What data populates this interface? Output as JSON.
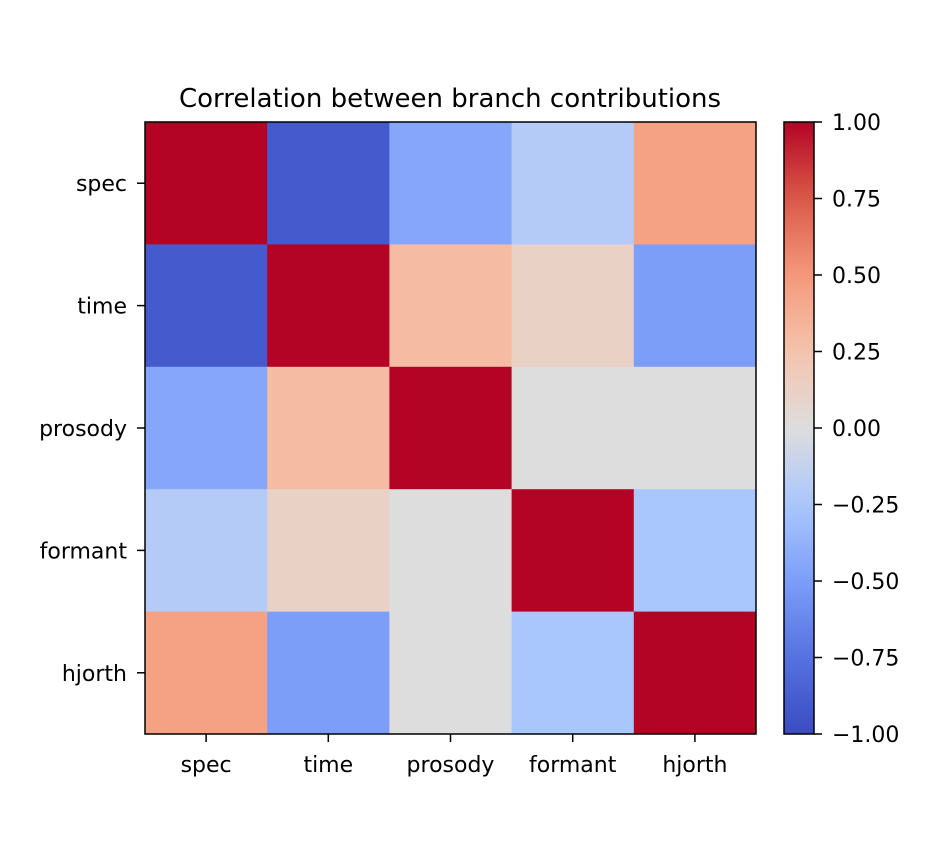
{
  "chart_data": {
    "type": "heatmap",
    "title": "Correlation between branch contributions",
    "xlabel": "",
    "ylabel": "",
    "x_categories": [
      "spec",
      "time",
      "prosody",
      "formant",
      "hjorth"
    ],
    "y_categories": [
      "spec",
      "time",
      "prosody",
      "formant",
      "hjorth"
    ],
    "values": [
      [
        1.0,
        -0.9,
        -0.45,
        -0.2,
        0.45
      ],
      [
        -0.9,
        1.0,
        0.3,
        0.12,
        -0.5
      ],
      [
        -0.45,
        0.3,
        1.0,
        0.0,
        0.0
      ],
      [
        -0.2,
        0.12,
        0.0,
        1.0,
        -0.25
      ],
      [
        0.45,
        -0.5,
        0.0,
        -0.25,
        1.0
      ]
    ],
    "colormap": "coolwarm",
    "vmin": -1.0,
    "vmax": 1.0,
    "colorbar_ticks": [
      "1.00",
      "0.75",
      "0.50",
      "0.25",
      "0.00",
      "−0.25",
      "−0.50",
      "−0.75",
      "−1.00"
    ],
    "colorbar_tick_values": [
      1.0,
      0.75,
      0.5,
      0.25,
      0.0,
      -0.25,
      -0.5,
      -0.75,
      -1.0
    ],
    "grid": false,
    "legend": "colorbar-right"
  }
}
